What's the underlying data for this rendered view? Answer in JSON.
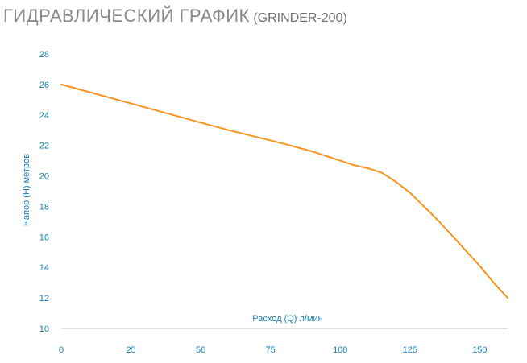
{
  "header": {
    "title": "ГИДРАВЛИЧЕСКИЙ ГРАФИК",
    "subtitle": "(GRINDER-200)"
  },
  "colors": {
    "line": "#f7931e",
    "tick_text": "#1a7fb4",
    "axis": "#e0e0e0",
    "title": "#8a8a8a"
  },
  "chart_data": {
    "type": "line",
    "title": "ГИДРАВЛИЧЕСКИЙ ГРАФИК (GRINDER-200)",
    "xlabel": "Расход (Q) л/мин",
    "ylabel": "Напор (H) метров",
    "xlim": [
      0,
      160
    ],
    "ylim": [
      10,
      28
    ],
    "x_ticks": [
      0,
      25,
      50,
      75,
      100,
      125,
      150
    ],
    "y_ticks": [
      10,
      12,
      14,
      16,
      18,
      20,
      22,
      24,
      26,
      28
    ],
    "grid": false,
    "series": [
      {
        "x": [
          0,
          10,
          20,
          30,
          40,
          50,
          60,
          70,
          80,
          90,
          100,
          105,
          110,
          115,
          120,
          125,
          130,
          135,
          140,
          145,
          150,
          155,
          160
        ],
        "y": [
          26.0,
          25.5,
          25.0,
          24.5,
          24.0,
          23.5,
          23.0,
          22.55,
          22.1,
          21.6,
          21.0,
          20.7,
          20.5,
          20.2,
          19.6,
          18.9,
          18.0,
          17.1,
          16.1,
          15.1,
          14.1,
          13.0,
          12.0
        ]
      }
    ]
  }
}
